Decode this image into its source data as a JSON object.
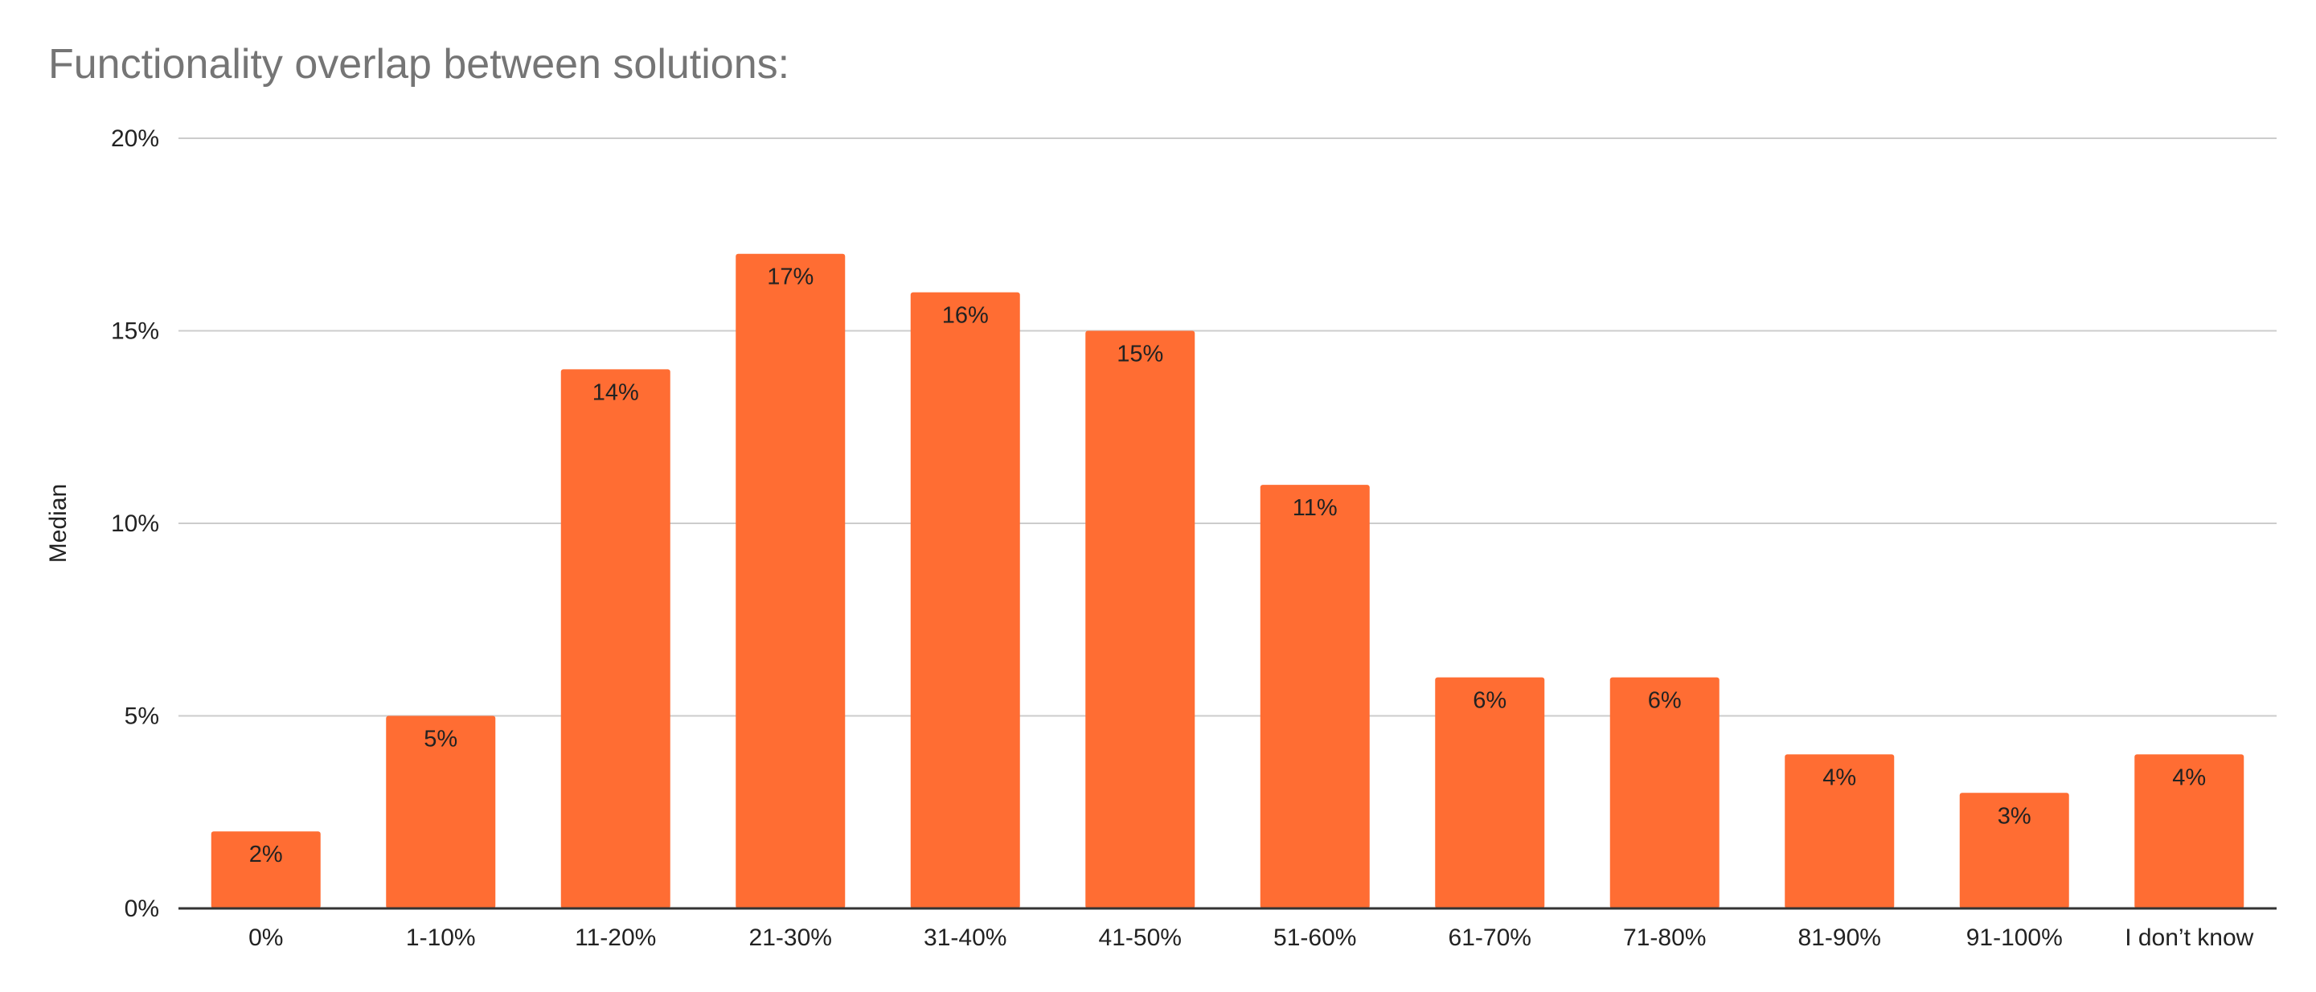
{
  "chart_data": {
    "type": "bar",
    "title": "Functionality overlap between solutions:",
    "xlabel": "",
    "ylabel": "Median",
    "categories": [
      "0%",
      "1-10%",
      "11-20%",
      "21-30%",
      "31-40%",
      "41-50%",
      "51-60%",
      "61-70%",
      "71-80%",
      "81-90%",
      "91-100%",
      "I don’t know"
    ],
    "values": [
      2,
      5,
      14,
      17,
      16,
      15,
      11,
      6,
      6,
      4,
      3,
      4
    ],
    "data_labels": [
      "2%",
      "5%",
      "14%",
      "17%",
      "16%",
      "15%",
      "11%",
      "6%",
      "6%",
      "4%",
      "3%",
      "4%"
    ],
    "ylim": [
      0,
      20
    ],
    "yticks": [
      0,
      5,
      10,
      15,
      20
    ],
    "ytick_labels": [
      "0%",
      "5%",
      "10%",
      "15%",
      "20%"
    ],
    "grid": true,
    "legend": "none",
    "colors": {
      "bar": "#FF6D33",
      "grid": "#CCCCCC",
      "axis": "#333333",
      "title": "#757575",
      "text": "#222222"
    }
  }
}
